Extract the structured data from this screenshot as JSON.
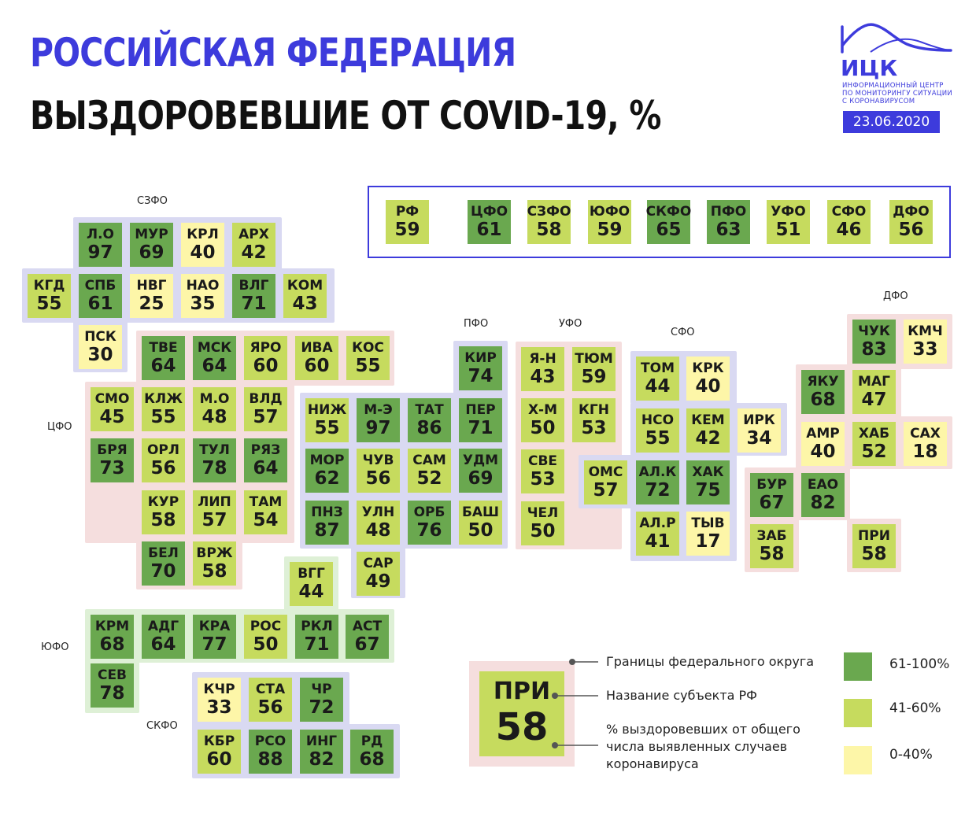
{
  "header": {
    "title": "РОССИЙСКАЯ ФЕДЕРАЦИЯ",
    "subtitle": "ВЫЗДОРОВЕВШИЕ ОТ COVID-19, %"
  },
  "logo": {
    "name": "ИЦК",
    "line1": "ИНФОРМАЦИОННЫЙ ЦЕНТР",
    "line2": "ПО МОНИТОРИНГУ СИТУАЦИИ",
    "line3": "С КОРОНАВИРУСОМ",
    "date": "23.06.2020"
  },
  "colors": {
    "high": "#6aa84f",
    "mid": "#c6db5e",
    "low": "#fdf6a8",
    "border_blue": "#d9d9f2",
    "border_pink": "#f5dede",
    "border_green": "#def0d6",
    "accent": "#3d3bdc"
  },
  "labels": {
    "szfo": "СЗФО",
    "cfo": "ЦФО",
    "yufo": "ЮФО",
    "skfo": "СКФО",
    "pfo": "ПФО",
    "ufo": "УФО",
    "sfo": "СФО",
    "dfo": "ДФО"
  },
  "summary": [
    {
      "abbr": "РФ",
      "val": 59
    },
    {
      "abbr": "ЦФО",
      "val": 61
    },
    {
      "abbr": "СЗФО",
      "val": 58
    },
    {
      "abbr": "ЮФО",
      "val": 59
    },
    {
      "abbr": "СКФО",
      "val": 65
    },
    {
      "abbr": "ПФО",
      "val": 63
    },
    {
      "abbr": "УФО",
      "val": 51
    },
    {
      "abbr": "СФО",
      "val": 46
    },
    {
      "abbr": "ДФО",
      "val": 56
    }
  ],
  "regions": [
    {
      "abbr": "Л.О",
      "val": 97
    },
    {
      "abbr": "МУР",
      "val": 69
    },
    {
      "abbr": "КРЛ",
      "val": 40
    },
    {
      "abbr": "АРХ",
      "val": 42
    },
    {
      "abbr": "КГД",
      "val": 55
    },
    {
      "abbr": "СПБ",
      "val": 61
    },
    {
      "abbr": "НВГ",
      "val": 25
    },
    {
      "abbr": "НАО",
      "val": 35
    },
    {
      "abbr": "ВЛГ",
      "val": 71
    },
    {
      "abbr": "КОМ",
      "val": 43
    },
    {
      "abbr": "ПСК",
      "val": 30
    },
    {
      "abbr": "ТВЕ",
      "val": 64
    },
    {
      "abbr": "МСК",
      "val": 64
    },
    {
      "abbr": "ЯРО",
      "val": 60
    },
    {
      "abbr": "ИВА",
      "val": 60
    },
    {
      "abbr": "КОС",
      "val": 55
    },
    {
      "abbr": "СМО",
      "val": 45
    },
    {
      "abbr": "КЛЖ",
      "val": 55
    },
    {
      "abbr": "М.О",
      "val": 48
    },
    {
      "abbr": "ВЛД",
      "val": 57
    },
    {
      "abbr": "БРЯ",
      "val": 73
    },
    {
      "abbr": "ОРЛ",
      "val": 56
    },
    {
      "abbr": "ТУЛ",
      "val": 78
    },
    {
      "abbr": "РЯЗ",
      "val": 64
    },
    {
      "abbr": "КУР",
      "val": 58
    },
    {
      "abbr": "ЛИП",
      "val": 57
    },
    {
      "abbr": "ТАМ",
      "val": 54
    },
    {
      "abbr": "БЕЛ",
      "val": 70
    },
    {
      "abbr": "ВРЖ",
      "val": 58
    },
    {
      "abbr": "КИР",
      "val": 74
    },
    {
      "abbr": "НИЖ",
      "val": 55
    },
    {
      "abbr": "М-Э",
      "val": 97
    },
    {
      "abbr": "ТАТ",
      "val": 86
    },
    {
      "abbr": "ПЕР",
      "val": 71
    },
    {
      "abbr": "МОР",
      "val": 62
    },
    {
      "abbr": "ЧУВ",
      "val": 56
    },
    {
      "abbr": "САМ",
      "val": 52
    },
    {
      "abbr": "УДМ",
      "val": 69
    },
    {
      "abbr": "ПНЗ",
      "val": 87
    },
    {
      "abbr": "УЛН",
      "val": 48
    },
    {
      "abbr": "ОРБ",
      "val": 76
    },
    {
      "abbr": "БАШ",
      "val": 50
    },
    {
      "abbr": "САР",
      "val": 49
    },
    {
      "abbr": "Я-Н",
      "val": 43
    },
    {
      "abbr": "ТЮМ",
      "val": 59
    },
    {
      "abbr": "Х-М",
      "val": 50
    },
    {
      "abbr": "КГН",
      "val": 53
    },
    {
      "abbr": "СВЕ",
      "val": 53
    },
    {
      "abbr": "ЧЕЛ",
      "val": 50
    },
    {
      "abbr": "ТОМ",
      "val": 44
    },
    {
      "abbr": "КРК",
      "val": 40
    },
    {
      "abbr": "НСО",
      "val": 55
    },
    {
      "abbr": "КЕМ",
      "val": 42
    },
    {
      "abbr": "ИРК",
      "val": 34
    },
    {
      "abbr": "ОМС",
      "val": 57
    },
    {
      "abbr": "АЛ.К",
      "val": 72
    },
    {
      "abbr": "ХАК",
      "val": 75
    },
    {
      "abbr": "АЛ.Р",
      "val": 41
    },
    {
      "abbr": "ТЫВ",
      "val": 17
    },
    {
      "abbr": "ЧУК",
      "val": 83
    },
    {
      "abbr": "КМЧ",
      "val": 33
    },
    {
      "abbr": "ЯКУ",
      "val": 68
    },
    {
      "abbr": "МАГ",
      "val": 47
    },
    {
      "abbr": "АМР",
      "val": 40
    },
    {
      "abbr": "ХАБ",
      "val": 52
    },
    {
      "abbr": "САХ",
      "val": 18
    },
    {
      "abbr": "БУР",
      "val": 67
    },
    {
      "abbr": "ЕАО",
      "val": 82
    },
    {
      "abbr": "ЗАБ",
      "val": 58
    },
    {
      "abbr": "ПРИ",
      "val": 58
    },
    {
      "abbr": "ВГГ",
      "val": 44
    },
    {
      "abbr": "КРМ",
      "val": 68
    },
    {
      "abbr": "АДГ",
      "val": 64
    },
    {
      "abbr": "КРА",
      "val": 77
    },
    {
      "abbr": "РОС",
      "val": 50
    },
    {
      "abbr": "РКЛ",
      "val": 71
    },
    {
      "abbr": "АСТ",
      "val": 67
    },
    {
      "abbr": "СЕВ",
      "val": 78
    },
    {
      "abbr": "КЧР",
      "val": 33
    },
    {
      "abbr": "СТА",
      "val": 56
    },
    {
      "abbr": "ЧР",
      "val": 72
    },
    {
      "abbr": "КБР",
      "val": 60
    },
    {
      "abbr": "РСО",
      "val": 88
    },
    {
      "abbr": "ИНГ",
      "val": 82
    },
    {
      "abbr": "РД",
      "val": 68
    }
  ],
  "legend": {
    "example_abbr": "ПРИ",
    "example_val": 58,
    "border_desc": "Границы федерального округа",
    "name_desc": "Название субъекта РФ",
    "pct_desc_1": "% выздоровевших от общего",
    "pct_desc_2": "числа выявленных случаев",
    "pct_desc_3": "коронавируса",
    "range_high": "61-100%",
    "range_mid": "41-60%",
    "range_low": "0-40%"
  }
}
